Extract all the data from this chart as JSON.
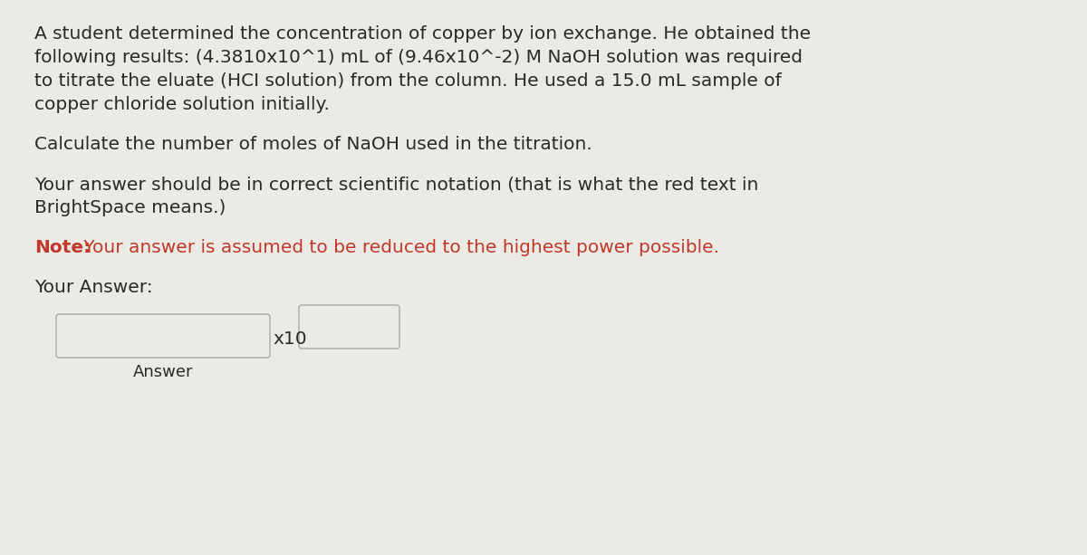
{
  "background_color": "#eceae4",
  "text_color": "#2a2a2a",
  "red_color": "#c0392b",
  "font_size_body": 14.5,
  "font_size_small": 13.0,
  "paragraph1_lines": [
    "A student determined the concentration of copper by ion exchange. He obtained the",
    "following results: (4.3810x10^1) mL of (9.46x10^-2) M NaOH solution was required",
    "to titrate the eluate (HCI solution) from the column. He used a 15.0 mL sample of",
    "copper chloride solution initially."
  ],
  "paragraph2": "Calculate the number of moles of NaOH used in the titration.",
  "paragraph3_lines": [
    "Your answer should be in correct scientific notation (that is what the red text in",
    "BrightSpace means.)"
  ],
  "note_bold": "Note:",
  "note_rest": " Your answer is assumed to be reduced to the highest power possible.",
  "your_answer_label": "Your Answer:",
  "x10_label": "x10",
  "answer_label": "Answer"
}
